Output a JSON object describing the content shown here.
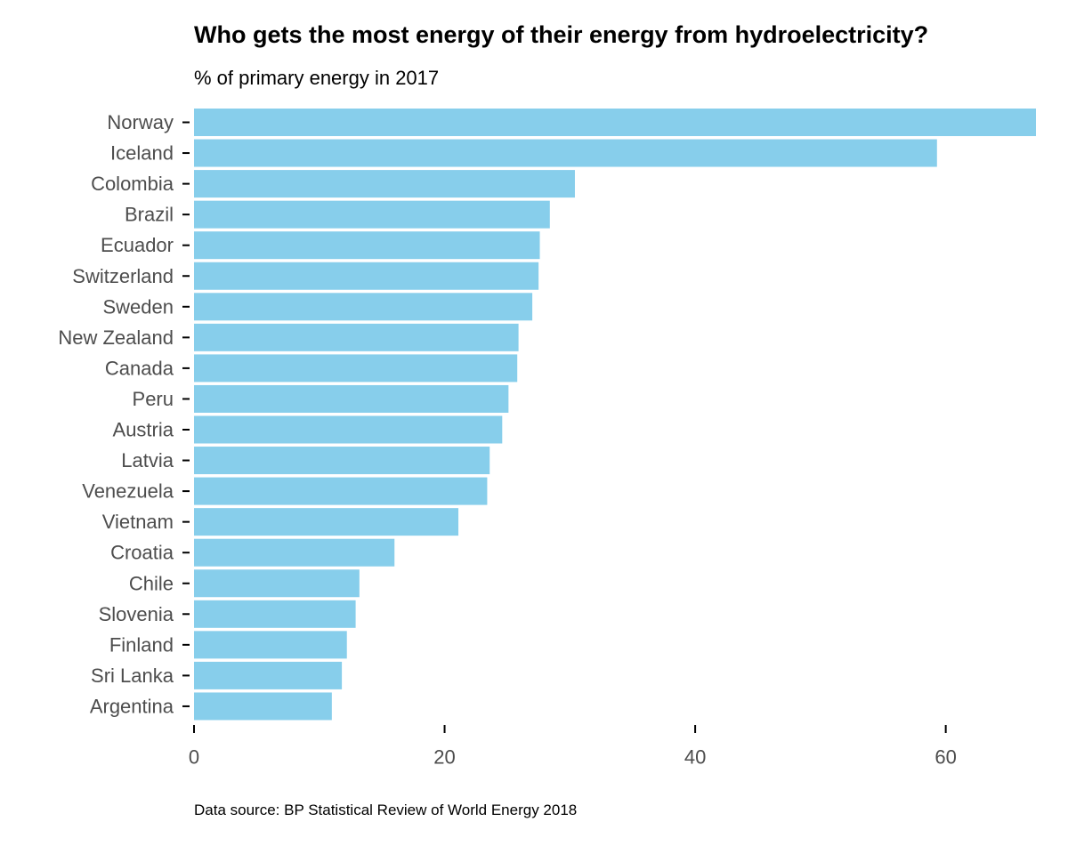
{
  "title": "Who gets the most energy of their energy from hydroelectricity?",
  "subtitle": "% of primary energy in 2017",
  "caption": "Data source: BP Statistical Review of World Energy 2018",
  "colors": {
    "bar": "#87CEEB",
    "tick_label": "#4d4d4d",
    "tick_mark": "#000000"
  },
  "chart_data": {
    "type": "bar",
    "orientation": "horizontal",
    "categories": [
      "Norway",
      "Iceland",
      "Colombia",
      "Brazil",
      "Ecuador",
      "Switzerland",
      "Sweden",
      "New Zealand",
      "Canada",
      "Peru",
      "Austria",
      "Latvia",
      "Venezuela",
      "Vietnam",
      "Croatia",
      "Chile",
      "Slovenia",
      "Finland",
      "Sri Lanka",
      "Argentina"
    ],
    "values": [
      67.2,
      59.3,
      30.4,
      28.4,
      27.6,
      27.5,
      27.0,
      25.9,
      25.8,
      25.1,
      24.6,
      23.6,
      23.4,
      21.1,
      16.0,
      13.2,
      12.9,
      12.2,
      11.8,
      11.0
    ],
    "title": "Who gets the most energy of their energy from hydroelectricity?",
    "subtitle": "% of primary energy in 2017",
    "xlabel": "",
    "ylabel": "",
    "xlim": [
      0,
      67.2
    ],
    "x_ticks": [
      0,
      20,
      40,
      60
    ],
    "grid": false,
    "legend": "none"
  }
}
